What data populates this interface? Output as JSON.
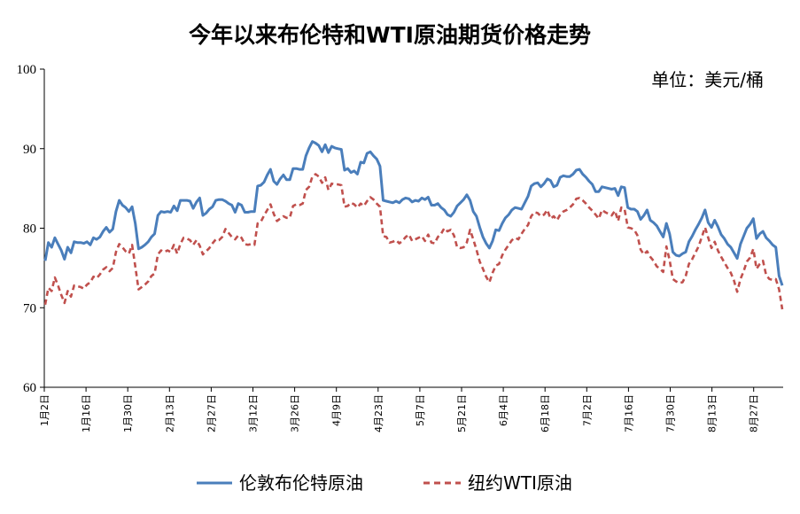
{
  "chart_data": {
    "type": "line",
    "title": "今年以来布伦特和WTI原油期货价格走势",
    "unit_label": "单位：美元/桶",
    "ylim": [
      60,
      100
    ],
    "yticks": [
      60,
      70,
      80,
      90,
      100
    ],
    "x_tick_labels": [
      "1月2日",
      "1月16日",
      "1月30日",
      "2月13日",
      "2月27日",
      "3月12日",
      "3月26日",
      "4月9日",
      "4月23日",
      "5月7日",
      "5月21日",
      "6月4日",
      "6月18日",
      "7月2日",
      "7月16日",
      "7月30日",
      "8月13日",
      "8月27日"
    ],
    "grid": false,
    "legend_position": "bottom",
    "series": [
      {
        "name": "伦敦布伦特原油",
        "color": "#4a7ebb",
        "style": "solid",
        "values": [
          75.9,
          78.2,
          77.6,
          78.8,
          78.0,
          77.2,
          76.1,
          77.6,
          76.9,
          78.3,
          78.2,
          78.2,
          78.1,
          78.3,
          77.9,
          78.8,
          78.6,
          78.9,
          79.6,
          80.1,
          79.5,
          79.9,
          82.1,
          83.5,
          82.9,
          82.6,
          82.1,
          82.7,
          80.6,
          77.4,
          77.6,
          77.9,
          78.3,
          78.9,
          79.3,
          81.6,
          82.1,
          82.0,
          82.1,
          82.0,
          82.8,
          82.2,
          83.5,
          83.5,
          83.5,
          83.4,
          82.5,
          83.3,
          83.8,
          81.6,
          81.9,
          82.4,
          82.7,
          83.5,
          83.6,
          83.6,
          83.4,
          83.1,
          82.9,
          82.0,
          83.1,
          82.9,
          82.0,
          82.0,
          82.1,
          82.1,
          85.3,
          85.4,
          85.8,
          86.7,
          87.4,
          85.9,
          85.5,
          86.2,
          86.7,
          86.1,
          86.1,
          87.5,
          87.5,
          87.4,
          87.4,
          89.1,
          90.1,
          90.9,
          90.7,
          90.4,
          89.6,
          90.5,
          89.5,
          90.3,
          90.1,
          90.0,
          89.9,
          87.3,
          87.5,
          87.0,
          87.2,
          86.8,
          88.3,
          88.2,
          89.4,
          89.6,
          89.1,
          88.7,
          87.8,
          83.5,
          83.4,
          83.3,
          83.2,
          83.4,
          83.2,
          83.6,
          83.8,
          83.7,
          83.3,
          83.5,
          83.4,
          83.8,
          83.6,
          83.9,
          82.9,
          82.9,
          83.1,
          82.6,
          82.3,
          81.7,
          81.5,
          82.0,
          82.8,
          83.2,
          83.6,
          84.2,
          83.5,
          82.1,
          81.5,
          80.1,
          78.9,
          78.1,
          77.5,
          78.4,
          79.8,
          79.7,
          80.6,
          81.3,
          81.7,
          82.3,
          82.6,
          82.5,
          82.4,
          83.2,
          84.0,
          85.3,
          85.6,
          85.7,
          85.2,
          85.6,
          86.2,
          86.0,
          85.2,
          85.4,
          86.4,
          86.6,
          86.5,
          86.5,
          86.8,
          87.3,
          87.4,
          86.8,
          86.4,
          85.9,
          85.5,
          84.6,
          84.6,
          85.2,
          85.1,
          85.0,
          84.9,
          85.0,
          84.1,
          85.2,
          85.1,
          82.6,
          82.4,
          82.4,
          82.1,
          81.1,
          81.6,
          82.3,
          81.0,
          80.7,
          80.3,
          79.6,
          78.9,
          80.6,
          79.3,
          77.0,
          76.6,
          76.5,
          76.8,
          77.0,
          78.3,
          79.0,
          79.8,
          80.5,
          81.3,
          82.3,
          80.7,
          80.1,
          81.0,
          80.2,
          79.2,
          78.7,
          78.0,
          77.6,
          76.9,
          76.2,
          78.0,
          79.0,
          80.0,
          80.5,
          81.2,
          78.7,
          79.3,
          79.6,
          78.8,
          78.4,
          77.9,
          77.6,
          74.0,
          72.8
        ]
      },
      {
        "name": "纽约WTI原油",
        "color": "#c0504d",
        "style": "dashed",
        "values": [
          70.4,
          72.5,
          72.1,
          73.8,
          72.8,
          71.6,
          70.6,
          72.1,
          71.4,
          72.8,
          72.7,
          72.6,
          72.4,
          72.9,
          73.2,
          73.9,
          73.7,
          74.2,
          74.8,
          75.1,
          74.6,
          75.0,
          77.0,
          78.0,
          77.6,
          77.1,
          76.8,
          77.9,
          75.2,
          72.3,
          72.6,
          72.9,
          73.3,
          74.0,
          74.3,
          76.7,
          77.2,
          77.0,
          77.2,
          77.0,
          77.9,
          76.8,
          78.0,
          78.8,
          78.7,
          78.5,
          77.9,
          78.5,
          77.8,
          76.7,
          77.1,
          77.5,
          78.1,
          78.6,
          78.5,
          78.9,
          79.9,
          79.4,
          78.9,
          78.6,
          79.1,
          78.8,
          78.0,
          77.9,
          78.0,
          77.9,
          80.6,
          80.8,
          81.6,
          82.3,
          83.0,
          81.8,
          80.9,
          81.2,
          81.5,
          81.3,
          81.3,
          82.8,
          83.0,
          82.9,
          83.1,
          84.8,
          85.2,
          86.5,
          86.8,
          86.5,
          85.7,
          86.4,
          84.8,
          85.6,
          85.5,
          85.5,
          85.4,
          82.7,
          82.8,
          83.2,
          83.0,
          82.6,
          83.1,
          82.8,
          83.4,
          83.9,
          83.6,
          83.1,
          82.7,
          79.0,
          78.9,
          78.2,
          78.3,
          78.5,
          78.1,
          78.4,
          78.9,
          79.2,
          78.4,
          78.6,
          78.8,
          79.0,
          78.4,
          79.2,
          78.2,
          78.1,
          78.9,
          79.3,
          80.0,
          79.6,
          79.8,
          79.1,
          77.6,
          77.5,
          77.6,
          78.2,
          79.8,
          78.6,
          77.3,
          75.8,
          74.9,
          73.9,
          73.2,
          74.4,
          75.3,
          75.5,
          76.6,
          77.3,
          77.9,
          78.5,
          78.8,
          78.6,
          79.3,
          79.9,
          80.4,
          81.5,
          82.0,
          81.9,
          81.5,
          81.7,
          82.3,
          81.2,
          81.5,
          81.0,
          81.7,
          82.1,
          82.3,
          82.6,
          83.0,
          83.7,
          83.8,
          83.5,
          83.1,
          82.6,
          82.2,
          81.7,
          81.2,
          82.3,
          82.0,
          81.8,
          81.6,
          82.2,
          80.9,
          82.6,
          82.4,
          80.1,
          80.0,
          79.8,
          79.1,
          77.3,
          76.7,
          77.1,
          76.4,
          75.9,
          75.2,
          74.9,
          74.5,
          77.7,
          76.0,
          73.6,
          73.3,
          73.1,
          73.2,
          74.0,
          75.5,
          76.1,
          76.9,
          77.7,
          78.9,
          80.1,
          78.8,
          77.5,
          78.3,
          77.2,
          76.4,
          75.7,
          75.0,
          74.4,
          73.4,
          72.0,
          73.6,
          74.6,
          75.8,
          76.3,
          77.4,
          74.9,
          75.5,
          75.9,
          74.1,
          73.6,
          73.5,
          73.6,
          72.3,
          69.8
        ]
      }
    ]
  }
}
